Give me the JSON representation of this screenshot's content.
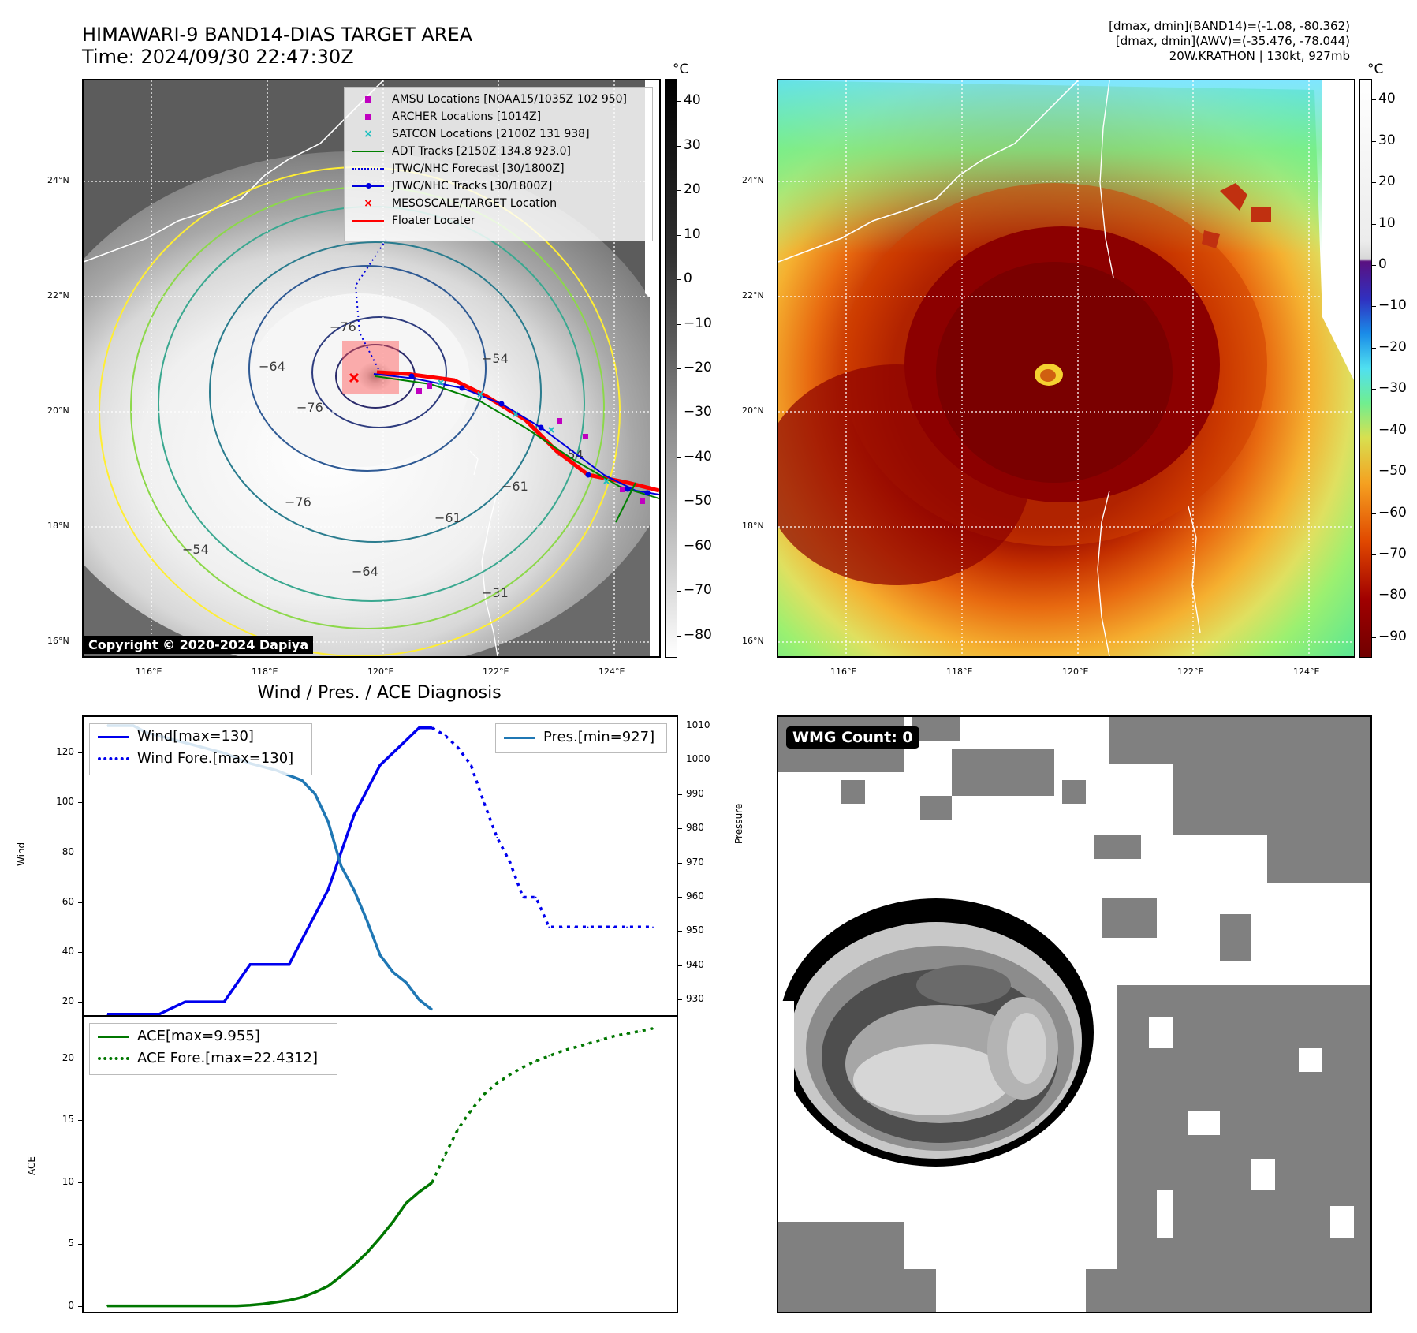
{
  "header": {
    "title_line1": "HIMAWARI-9 BAND14-DIAS TARGET AREA",
    "title_line2": "Time: 2024/09/30 22:47:30Z",
    "info_line1": "[dmax, dmin](BAND14)=(-1.08, -80.362)",
    "info_line2": "[dmax, dmin](AWV)=(-35.476, -78.044)",
    "info_line3": "20W.KRATHON | 130kt, 927mb"
  },
  "map_axes": {
    "lat_labels": [
      "24°N",
      "22°N",
      "20°N",
      "18°N",
      "16°N"
    ],
    "lon_labels": [
      "116°E",
      "118°E",
      "120°E",
      "122°E",
      "124°E"
    ]
  },
  "ir_panel": {
    "colorbar_unit": "°C",
    "colorbar_ticks": [
      "40",
      "30",
      "20",
      "10",
      "0",
      "−10",
      "−20",
      "−30",
      "−40",
      "−50",
      "−60",
      "−70",
      "−80"
    ],
    "contour_labels": [
      "−76",
      "−64",
      "−76",
      "−76",
      "−54",
      "−54",
      "−64",
      "−61",
      "−54",
      "−61",
      "−31"
    ],
    "copyright": "Copyright © 2020-2024 Dapiya",
    "legend": [
      {
        "label": "AMSU Locations [NOAA15/1035Z 102 950]",
        "symbol": "square",
        "color": "#c000c0"
      },
      {
        "label": "ARCHER Locations [1014Z]",
        "symbol": "square",
        "color": "#c000c0"
      },
      {
        "label": "SATCON Locations [2100Z 131 938]",
        "symbol": "x",
        "color": "#20c0c0"
      },
      {
        "label": "ADT Tracks [2150Z 134.8 923.0]",
        "symbol": "line",
        "color": "#008000"
      },
      {
        "label": "JTWC/NHC Forecast [30/1800Z]",
        "symbol": "dotted",
        "color": "#0000dd"
      },
      {
        "label": "JTWC/NHC Tracks [30/1800Z]",
        "symbol": "line-dot",
        "color": "#0000dd"
      },
      {
        "label": "MESOSCALE/TARGET Location",
        "symbol": "x",
        "color": "#ff0000"
      },
      {
        "label": "Floater Locater",
        "symbol": "line",
        "color": "#ff0000"
      }
    ]
  },
  "awv_panel": {
    "colorbar_unit": "°C",
    "colorbar_ticks": [
      "40",
      "30",
      "20",
      "10",
      "0",
      "−10",
      "−20",
      "−30",
      "−40",
      "−50",
      "−60",
      "−70",
      "−80",
      "−90"
    ]
  },
  "wmg_panel": {
    "badge": "WMG Count: 0"
  },
  "chart_data": [
    {
      "type": "line",
      "title": "Wind / Pres. / ACE Diagnosis",
      "ylabel": "Wind",
      "ylabel_right": "Pressure",
      "ylim": [
        14,
        135
      ],
      "ylim_right": [
        925,
        1013
      ],
      "yticks": [
        20,
        40,
        60,
        80,
        100,
        120
      ],
      "yticks_right": [
        930,
        940,
        950,
        960,
        970,
        980,
        990,
        1000,
        1010
      ],
      "x": [
        0,
        1,
        2,
        3,
        4,
        5,
        6,
        7,
        8,
        9,
        10,
        11,
        12,
        13,
        14,
        15,
        16,
        17,
        18,
        19,
        20,
        21,
        22,
        23,
        24,
        25,
        26,
        27,
        28,
        29,
        30,
        31,
        32,
        33,
        34,
        35,
        36,
        37,
        38,
        39,
        40,
        41,
        42
      ],
      "series": [
        {
          "name": "Wind[max=130]",
          "axis": "left",
          "style": "solid",
          "color": "#0000ee",
          "x": [
            0,
            3,
            4,
            6,
            7,
            9,
            11,
            12,
            14,
            15,
            16,
            17,
            18,
            19,
            20,
            21,
            22,
            23,
            24,
            25
          ],
          "values": [
            15,
            15,
            15,
            20,
            20,
            20,
            35,
            35,
            35,
            45,
            55,
            65,
            80,
            95,
            105,
            115,
            120,
            125,
            130,
            130
          ]
        },
        {
          "name": "Wind Fore.[max=130]",
          "axis": "left",
          "style": "dotted",
          "color": "#0000ee",
          "x": [
            25,
            26,
            27,
            28,
            29,
            30,
            31,
            32,
            33,
            34,
            35,
            36,
            37,
            38,
            39,
            40,
            41,
            42
          ],
          "values": [
            130,
            127,
            122,
            115,
            100,
            86,
            76,
            62,
            62,
            50,
            50,
            50,
            50,
            50,
            50,
            50,
            50,
            50
          ]
        },
        {
          "name": "Pres.[min=927]",
          "axis": "right",
          "style": "solid",
          "color": "#1f77b4",
          "x": [
            0,
            2,
            3,
            5,
            7,
            9,
            11,
            13,
            15,
            16,
            17,
            18,
            19,
            20,
            21,
            22,
            23,
            24,
            25
          ],
          "values": [
            1010,
            1010,
            1008,
            1006,
            1004,
            1002,
            999,
            997,
            994,
            990,
            982,
            969,
            962,
            953,
            943,
            938,
            935,
            930,
            927
          ]
        }
      ]
    },
    {
      "type": "line",
      "ylabel": "ACE",
      "ylim": [
        -0.6,
        23.5
      ],
      "yticks": [
        0,
        5,
        10,
        15,
        20
      ],
      "series": [
        {
          "name": "ACE[max=9.955]",
          "style": "solid",
          "color": "#007700",
          "x": [
            0,
            4,
            5,
            6,
            8,
            9,
            10,
            11,
            12,
            13,
            14,
            15,
            16,
            17,
            18,
            19,
            20,
            21,
            22,
            23,
            24,
            25
          ],
          "values": [
            0,
            0,
            0,
            0,
            0,
            0,
            0,
            0.05,
            0.15,
            0.3,
            0.45,
            0.7,
            1.1,
            1.6,
            2.4,
            3.3,
            4.3,
            5.5,
            6.8,
            8.3,
            9.2,
            9.955
          ]
        },
        {
          "name": "ACE Fore.[max=22.4312]",
          "style": "dotted",
          "color": "#007700",
          "x": [
            25,
            26,
            27,
            28,
            29,
            30,
            31,
            32,
            33,
            34,
            35,
            36,
            37,
            38,
            39,
            40,
            41,
            42
          ],
          "values": [
            9.955,
            12.2,
            14.3,
            15.8,
            17.1,
            18.0,
            18.7,
            19.3,
            19.8,
            20.2,
            20.6,
            20.9,
            21.2,
            21.5,
            21.8,
            22.0,
            22.2,
            22.4312
          ]
        }
      ]
    }
  ]
}
